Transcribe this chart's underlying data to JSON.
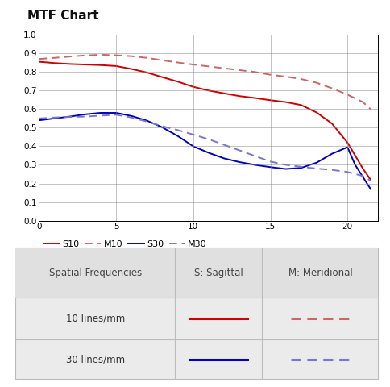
{
  "title": "MTF Chart",
  "xlim": [
    0,
    22
  ],
  "ylim": [
    0,
    1
  ],
  "xticks": [
    0,
    5,
    10,
    15,
    20
  ],
  "yticks": [
    0,
    0.1,
    0.2,
    0.3,
    0.4,
    0.5,
    0.6,
    0.7,
    0.8,
    0.9,
    1
  ],
  "S10_x": [
    0,
    1,
    2,
    3,
    4,
    5,
    6,
    7,
    8,
    9,
    10,
    11,
    12,
    13,
    14,
    15,
    16,
    17,
    18,
    19,
    20,
    21,
    21.5
  ],
  "S10_y": [
    0.855,
    0.848,
    0.843,
    0.84,
    0.837,
    0.832,
    0.816,
    0.797,
    0.772,
    0.748,
    0.72,
    0.7,
    0.685,
    0.67,
    0.66,
    0.648,
    0.638,
    0.622,
    0.582,
    0.522,
    0.42,
    0.28,
    0.22
  ],
  "M10_x": [
    0,
    1,
    2,
    3,
    4,
    5,
    6,
    7,
    8,
    9,
    10,
    11,
    12,
    13,
    14,
    15,
    16,
    17,
    18,
    19,
    20,
    21,
    21.5
  ],
  "M10_y": [
    0.87,
    0.876,
    0.883,
    0.889,
    0.893,
    0.89,
    0.885,
    0.876,
    0.863,
    0.851,
    0.84,
    0.83,
    0.82,
    0.81,
    0.8,
    0.785,
    0.775,
    0.762,
    0.742,
    0.712,
    0.678,
    0.638,
    0.6
  ],
  "S30_x": [
    0,
    1,
    2,
    3,
    4,
    5,
    6,
    7,
    8,
    9,
    10,
    11,
    12,
    13,
    14,
    15,
    16,
    17,
    18,
    19,
    20,
    20.5,
    21.5
  ],
  "S30_y": [
    0.54,
    0.55,
    0.56,
    0.572,
    0.58,
    0.58,
    0.563,
    0.538,
    0.502,
    0.455,
    0.4,
    0.365,
    0.335,
    0.315,
    0.3,
    0.288,
    0.278,
    0.284,
    0.312,
    0.36,
    0.395,
    0.3,
    0.17
  ],
  "M30_x": [
    0,
    1,
    2,
    3,
    4,
    5,
    6,
    7,
    8,
    9,
    10,
    11,
    12,
    13,
    14,
    15,
    16,
    17,
    18,
    19,
    20,
    21,
    21.5
  ],
  "M30_y": [
    0.55,
    0.555,
    0.558,
    0.56,
    0.565,
    0.57,
    0.555,
    0.533,
    0.508,
    0.487,
    0.463,
    0.438,
    0.408,
    0.378,
    0.348,
    0.318,
    0.3,
    0.29,
    0.28,
    0.273,
    0.262,
    0.24,
    0.215
  ],
  "S10_color": "#cc0000",
  "M10_color": "#cc6666",
  "S30_color": "#0000bb",
  "M30_color": "#7777cc",
  "bg_color": "#ffffff",
  "grid_color": "#888888",
  "table_bg": "#eeeeee",
  "table_header_color": "#444444",
  "table_row_color": "#333333",
  "legend_labels": [
    "S10",
    "M10",
    "S30",
    "M30"
  ],
  "table_col_labels": [
    "Spatial Frequencies",
    "S: Sagittal",
    "M: Meridional"
  ],
  "table_row_labels": [
    "10 lines/mm",
    "30 lines/mm"
  ]
}
